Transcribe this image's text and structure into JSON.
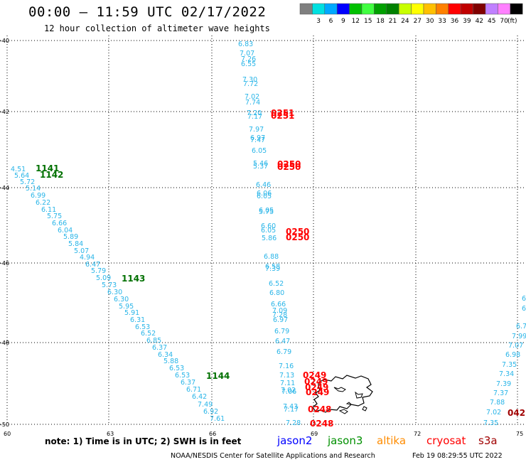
{
  "header": {
    "title": "00:00 – 11:59 UTC 02/17/2022",
    "subtitle": "12 hour collection of altimeter wave heights"
  },
  "legend": {
    "unit": "(ft)",
    "swatches": [
      {
        "label": "",
        "color": "#7f7f7f"
      },
      {
        "label": "3",
        "color": "#00e0e0"
      },
      {
        "label": "6",
        "color": "#00a8ff"
      },
      {
        "label": "9",
        "color": "#0000ff"
      },
      {
        "label": "12",
        "color": "#00c000"
      },
      {
        "label": "15",
        "color": "#40ff40"
      },
      {
        "label": "18",
        "color": "#00a000"
      },
      {
        "label": "21",
        "color": "#008000"
      },
      {
        "label": "24",
        "color": "#c8ff00"
      },
      {
        "label": "27",
        "color": "#ffff00"
      },
      {
        "label": "30",
        "color": "#ffc000"
      },
      {
        "label": "33",
        "color": "#ff8000"
      },
      {
        "label": "36",
        "color": "#ff0000"
      },
      {
        "label": "39",
        "color": "#c00000"
      },
      {
        "label": "42",
        "color": "#800000"
      },
      {
        "label": "45",
        "color": "#c080ff"
      },
      {
        "label": "70",
        "color": "#ff80ff"
      },
      {
        "label": "",
        "color": "#000000"
      }
    ]
  },
  "axes": {
    "x_ticks": [
      "60",
      "63",
      "66",
      "69",
      "72",
      "75"
    ],
    "y_ticks": [
      "-40",
      "-42",
      "-44",
      "-46",
      "-48",
      "-50"
    ]
  },
  "tracks": [
    {
      "name": "west",
      "color": "#29b5e8",
      "readings": [
        "4.51",
        "5.64",
        "5.72",
        "5.14",
        "6.99",
        "6.22",
        "6.11",
        "5.75",
        "6.66",
        "6.04",
        "5.89",
        "5.84",
        "5.07",
        "4.94",
        "6.47",
        "5.79",
        "5.09",
        "5.73",
        "6.30",
        "6.30",
        "5.95",
        "5.91",
        "6.31",
        "6.53",
        "6.52",
        "6.85",
        "6.37",
        "6.34",
        "5.88",
        "6.53",
        "6.53",
        "6.37",
        "6.71",
        "6.42",
        "7.49",
        "6.92",
        "7.61"
      ]
    },
    {
      "name": "middle",
      "color": "#29b5e8",
      "readings": [
        "6.83",
        "7.07",
        "7.26",
        "6.55",
        "7.30",
        "7.72",
        "7.02",
        "7.74",
        "7.20",
        "7.17",
        "7.97",
        "6.97",
        "7.47",
        "6.05",
        "5.46",
        "5.37",
        "6.46",
        "6.06",
        "6.05",
        "6.05",
        "5.75",
        "6.60",
        "6.05",
        "5.86",
        "6.88",
        "6.58",
        "7.39",
        "6.52",
        "6.80",
        "6.66",
        "7.09",
        "7.28",
        "6.97",
        "6.79",
        "6.47",
        "6.79",
        "7.16",
        "7.13",
        "7.11",
        "7.02",
        "7.06",
        "7.43",
        "7.17",
        "7.28"
      ]
    },
    {
      "name": "east",
      "color": "#29b5e8",
      "readings": [
        "6",
        "6",
        "6.7",
        "7.99",
        "7.07",
        "6.98",
        "7.35",
        "7.34",
        "7.39",
        "7.37",
        "7.88",
        "7.02",
        "7.35"
      ]
    }
  ],
  "time_labels": [
    {
      "text": "1141",
      "color": "#007000"
    },
    {
      "text": "1142",
      "color": "#007000"
    },
    {
      "text": "1143",
      "color": "#007000"
    },
    {
      "text": "1144",
      "color": "#007000"
    },
    {
      "text": "0251",
      "color": "#ff0000"
    },
    {
      "text": "0251",
      "color": "#ff0000"
    },
    {
      "text": "0250",
      "color": "#ff0000"
    },
    {
      "text": "0250",
      "color": "#ff0000"
    },
    {
      "text": "0250",
      "color": "#ff0000"
    },
    {
      "text": "0250",
      "color": "#ff0000"
    },
    {
      "text": "0249",
      "color": "#ff0000"
    },
    {
      "text": "0249",
      "color": "#ff0000"
    },
    {
      "text": "0249",
      "color": "#ff0000"
    },
    {
      "text": "0249",
      "color": "#ff0000"
    },
    {
      "text": "0248",
      "color": "#ff0000"
    },
    {
      "text": "0248",
      "color": "#ff0000"
    },
    {
      "text": "042",
      "color": "#a00000"
    }
  ],
  "note": {
    "text": "note:  1) Time is in UTC;  2) SWH is in feet",
    "satellites": [
      {
        "name": "jason2",
        "color": "#0000ff"
      },
      {
        "name": "jason3",
        "color": "#009000"
      },
      {
        "name": "altika",
        "color": "#ff8c00"
      },
      {
        "name": "cryosat",
        "color": "#ff0000"
      },
      {
        "name": "s3a",
        "color": "#a00000"
      }
    ]
  },
  "footer": {
    "credit": "NOAA/NESDIS Center for Satellite Applications and Research",
    "timestamp": "Feb 19 08:29:55 UTC 2022"
  }
}
